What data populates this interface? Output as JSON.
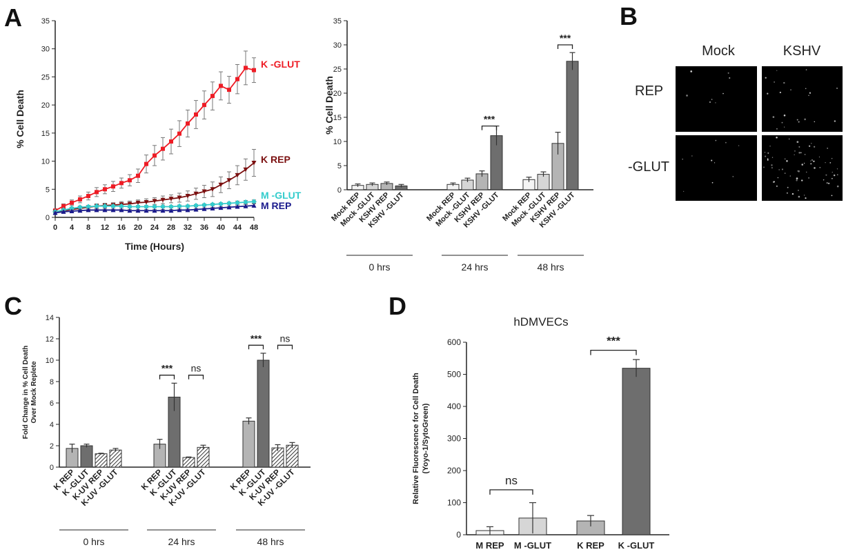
{
  "panel_letters": [
    "A",
    "B",
    "C",
    "D"
  ],
  "colors": {
    "k_glut": "#ee1c25",
    "k_rep": "#7b1010",
    "m_glut": "#33cccc",
    "m_rep": "#1a1a8c",
    "bar_white": "#f4f4f4",
    "bar_light": "#d6d6d6",
    "bar_mid": "#b4b4b4",
    "bar_dark": "#6e6e6e",
    "error": "#444444"
  },
  "panelB": {
    "columns": [
      "Mock",
      "KSHV"
    ],
    "rows": [
      "REP",
      "-GLUT"
    ]
  },
  "chart_data": [
    {
      "id": "A1",
      "type": "line",
      "xlabel": "Time (Hours)",
      "ylabel": "% Cell Death",
      "xlim": [
        0,
        48
      ],
      "ylim": [
        0,
        35
      ],
      "xticks": [
        0,
        4,
        8,
        12,
        16,
        20,
        24,
        28,
        32,
        36,
        40,
        44,
        48
      ],
      "yticks": [
        0,
        5,
        10,
        15,
        20,
        25,
        30,
        35
      ],
      "grid": false,
      "series": [
        {
          "name": "K -GLUT",
          "color": "#ee1c25",
          "marker": "square",
          "x": [
            0,
            2,
            4,
            6,
            8,
            10,
            12,
            14,
            16,
            18,
            20,
            22,
            24,
            26,
            28,
            30,
            32,
            34,
            36,
            38,
            40,
            42,
            44,
            46,
            48
          ],
          "y": [
            1.2,
            2.0,
            2.6,
            3.2,
            3.8,
            4.5,
            5.0,
            5.5,
            6.1,
            6.6,
            7.4,
            9.5,
            11.0,
            12.2,
            13.5,
            14.9,
            16.7,
            18.3,
            20.0,
            21.6,
            23.4,
            22.7,
            24.6,
            26.6,
            26.2
          ],
          "err": [
            0.3,
            0.4,
            0.5,
            0.6,
            0.7,
            0.8,
            0.8,
            0.9,
            0.9,
            1.0,
            1.2,
            1.6,
            1.8,
            2.0,
            2.2,
            2.3,
            2.4,
            2.5,
            2.5,
            2.5,
            2.5,
            2.4,
            2.6,
            3.0,
            2.2
          ]
        },
        {
          "name": "K REP",
          "color": "#7b1010",
          "marker": "triangle-down",
          "x": [
            0,
            2,
            4,
            6,
            8,
            10,
            12,
            14,
            16,
            18,
            20,
            22,
            24,
            26,
            28,
            30,
            32,
            34,
            36,
            38,
            40,
            42,
            44,
            46,
            48
          ],
          "y": [
            1.0,
            1.2,
            1.4,
            1.6,
            1.8,
            2.0,
            2.1,
            2.2,
            2.3,
            2.4,
            2.6,
            2.7,
            2.9,
            3.1,
            3.3,
            3.5,
            3.8,
            4.2,
            4.6,
            5.0,
            5.8,
            6.6,
            7.5,
            8.5,
            9.7
          ],
          "err": [
            0.2,
            0.2,
            0.3,
            0.3,
            0.3,
            0.4,
            0.4,
            0.4,
            0.5,
            0.5,
            0.5,
            0.6,
            0.6,
            0.7,
            0.7,
            0.8,
            0.9,
            1.0,
            1.1,
            1.3,
            1.4,
            1.5,
            1.7,
            1.9,
            2.4
          ]
        },
        {
          "name": "M -GLUT",
          "color": "#33cccc",
          "marker": "diamond",
          "x": [
            0,
            2,
            4,
            6,
            8,
            10,
            12,
            14,
            16,
            18,
            20,
            22,
            24,
            26,
            28,
            30,
            32,
            34,
            36,
            38,
            40,
            42,
            44,
            46,
            48
          ],
          "y": [
            1.0,
            1.3,
            1.6,
            1.8,
            1.9,
            2.0,
            2.0,
            2.0,
            2.0,
            1.9,
            1.9,
            1.9,
            1.9,
            1.9,
            1.9,
            2.0,
            2.0,
            2.1,
            2.2,
            2.3,
            2.4,
            2.5,
            2.6,
            2.7,
            2.8
          ],
          "err": [
            0.2,
            0.2,
            0.2,
            0.2,
            0.2,
            0.2,
            0.2,
            0.2,
            0.2,
            0.2,
            0.2,
            0.2,
            0.2,
            0.2,
            0.2,
            0.2,
            0.2,
            0.2,
            0.2,
            0.2,
            0.2,
            0.2,
            0.3,
            0.3,
            0.3
          ]
        },
        {
          "name": "M REP",
          "color": "#1a1a8c",
          "marker": "triangle-up",
          "x": [
            0,
            2,
            4,
            6,
            8,
            10,
            12,
            14,
            16,
            18,
            20,
            22,
            24,
            26,
            28,
            30,
            32,
            34,
            36,
            38,
            40,
            42,
            44,
            46,
            48
          ],
          "y": [
            0.8,
            1.0,
            1.1,
            1.2,
            1.3,
            1.3,
            1.3,
            1.3,
            1.3,
            1.2,
            1.2,
            1.2,
            1.2,
            1.2,
            1.2,
            1.3,
            1.3,
            1.4,
            1.5,
            1.6,
            1.7,
            1.8,
            1.9,
            2.0,
            2.1
          ],
          "err": [
            0.2,
            0.2,
            0.2,
            0.2,
            0.2,
            0.2,
            0.2,
            0.2,
            0.2,
            0.2,
            0.2,
            0.2,
            0.2,
            0.2,
            0.2,
            0.2,
            0.2,
            0.2,
            0.2,
            0.2,
            0.2,
            0.2,
            0.2,
            0.3,
            0.3
          ]
        }
      ]
    },
    {
      "id": "A2",
      "type": "bar",
      "ylabel": "% Cell Death",
      "ylim": [
        0,
        35
      ],
      "yticks": [
        0,
        5,
        10,
        15,
        20,
        25,
        30,
        35
      ],
      "grid": false,
      "groups": [
        {
          "label": "0 hrs",
          "bars": [
            {
              "label": "Mock REP",
              "value": 0.9,
              "err": 0.3,
              "fill": "#f4f4f4"
            },
            {
              "label": "Mock -GLUT",
              "value": 1.1,
              "err": 0.3,
              "fill": "#d6d6d6"
            },
            {
              "label": "KSHV REP",
              "value": 1.3,
              "err": 0.3,
              "fill": "#b4b4b4"
            },
            {
              "label": "KSHV -GLUT",
              "value": 0.8,
              "err": 0.3,
              "fill": "#6e6e6e"
            }
          ]
        },
        {
          "label": "24 hrs",
          "bars": [
            {
              "label": "Mock REP",
              "value": 1.1,
              "err": 0.3,
              "fill": "#f4f4f4"
            },
            {
              "label": "Mock -GLUT",
              "value": 2.0,
              "err": 0.4,
              "fill": "#d6d6d6"
            },
            {
              "label": "KSHV REP",
              "value": 3.3,
              "err": 0.6,
              "fill": "#b4b4b4"
            },
            {
              "label": "KSHV -GLUT",
              "value": 11.2,
              "err": 2.0,
              "fill": "#6e6e6e"
            }
          ]
        },
        {
          "label": "48 hrs",
          "bars": [
            {
              "label": "Mock REP",
              "value": 2.1,
              "err": 0.5,
              "fill": "#f4f4f4"
            },
            {
              "label": "Mock -GLUT",
              "value": 3.2,
              "err": 0.5,
              "fill": "#d6d6d6"
            },
            {
              "label": "KSHV REP",
              "value": 9.6,
              "err": 2.3,
              "fill": "#b4b4b4"
            },
            {
              "label": "KSHV -GLUT",
              "value": 26.6,
              "err": 1.8,
              "fill": "#6e6e6e"
            }
          ]
        }
      ],
      "annotations": [
        {
          "text": "***",
          "group": 1,
          "from": 2,
          "to": 3,
          "y": 13.2
        },
        {
          "text": "***",
          "group": 2,
          "from": 2,
          "to": 3,
          "y": 30.0
        }
      ]
    },
    {
      "id": "C",
      "type": "bar",
      "ylabel": "Fold Change in % Cell Death",
      "ylabel2": "Over Mock Replete",
      "ylim": [
        0,
        14
      ],
      "yticks": [
        0,
        2,
        4,
        6,
        8,
        10,
        12,
        14
      ],
      "grid": false,
      "groups": [
        {
          "label": "0 hrs",
          "bars": [
            {
              "label": "K REP",
              "value": 1.75,
              "err": 0.4,
              "fill": "#b4b4b4"
            },
            {
              "label": "K -GLUT",
              "value": 2.0,
              "err": 0.15,
              "fill": "#6e6e6e"
            },
            {
              "label": "K-UV REP",
              "value": 1.25,
              "err": 0.05,
              "fill": "#b4b4b4",
              "hatch": true
            },
            {
              "label": "K-UV -GLUT",
              "value": 1.6,
              "err": 0.15,
              "fill": "#6e6e6e",
              "hatch": true
            }
          ]
        },
        {
          "label": "24 hrs",
          "bars": [
            {
              "label": "K REP",
              "value": 2.15,
              "err": 0.45,
              "fill": "#b4b4b4"
            },
            {
              "label": "K -GLUT",
              "value": 6.55,
              "err": 1.3,
              "fill": "#6e6e6e"
            },
            {
              "label": "K-UV REP",
              "value": 0.9,
              "err": 0.05,
              "fill": "#b4b4b4",
              "hatch": true
            },
            {
              "label": "K-UV -GLUT",
              "value": 1.85,
              "err": 0.2,
              "fill": "#6e6e6e",
              "hatch": true
            }
          ]
        },
        {
          "label": "48 hrs",
          "bars": [
            {
              "label": "K REP",
              "value": 4.3,
              "err": 0.3,
              "fill": "#b4b4b4"
            },
            {
              "label": "K -GLUT",
              "value": 10.0,
              "err": 0.65,
              "fill": "#6e6e6e"
            },
            {
              "label": "K-UV REP",
              "value": 1.8,
              "err": 0.3,
              "fill": "#b4b4b4",
              "hatch": true
            },
            {
              "label": "K-UV -GLUT",
              "value": 2.05,
              "err": 0.25,
              "fill": "#6e6e6e",
              "hatch": true
            }
          ]
        }
      ],
      "annotations": [
        {
          "text": "***",
          "group": 1,
          "from": 0,
          "to": 1,
          "y": 8.6
        },
        {
          "text": "ns",
          "group": 1,
          "from": 2,
          "to": 3,
          "y": 8.6
        },
        {
          "text": "***",
          "group": 2,
          "from": 0,
          "to": 1,
          "y": 11.4
        },
        {
          "text": "ns",
          "group": 2,
          "from": 2,
          "to": 3,
          "y": 11.4
        }
      ]
    },
    {
      "id": "D",
      "type": "bar",
      "title": "hDMVECs",
      "ylabel": "Relative Fluorescence for Cell Death",
      "ylabel2": "(Yoyo-1/SytoGreen)",
      "ylim": [
        0,
        600
      ],
      "yticks": [
        0,
        100,
        200,
        300,
        400,
        500,
        600
      ],
      "grid": false,
      "bars": [
        {
          "label": "M REP",
          "value": 13,
          "err": 12,
          "fill": "#f4f4f4"
        },
        {
          "label": "M -GLUT",
          "value": 52,
          "err": 48,
          "fill": "#d6d6d6"
        },
        {
          "label": "K REP",
          "value": 43,
          "err": 17,
          "fill": "#b4b4b4"
        },
        {
          "label": "K -GLUT",
          "value": 519,
          "err": 27,
          "fill": "#6e6e6e"
        }
      ],
      "annotations": [
        {
          "text": "ns",
          "from": 0,
          "to": 1,
          "y": 140
        },
        {
          "text": "***",
          "from": 2,
          "to": 3,
          "y": 575
        }
      ]
    }
  ]
}
